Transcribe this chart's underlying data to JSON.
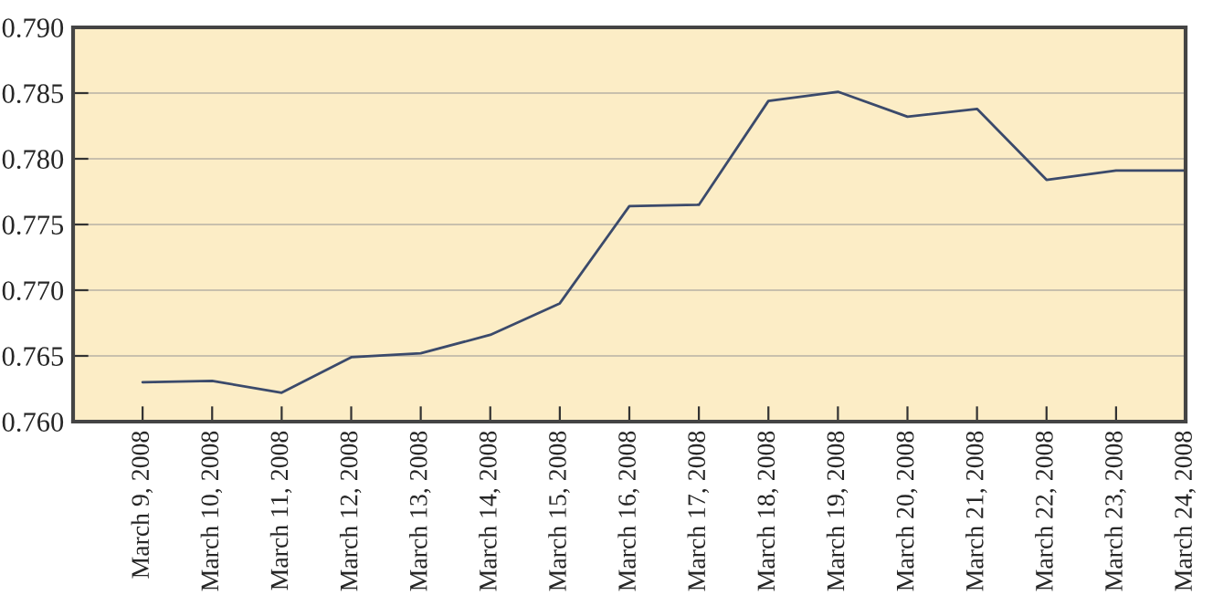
{
  "chart_data": {
    "type": "line",
    "categories": [
      "March 9, 2008",
      "March 10, 2008",
      "March 11, 2008",
      "March 12, 2008",
      "March 13, 2008",
      "March 14, 2008",
      "March 15, 2008",
      "March 16, 2008",
      "March 17, 2008",
      "March 18, 2008",
      "March 19, 2008",
      "March 20, 2008",
      "March 21, 2008",
      "March 22, 2008",
      "March 23, 2008",
      "March 24, 2008"
    ],
    "series": [
      {
        "color": "#3b4a6b",
        "values": [
          0.763,
          0.7631,
          0.7622,
          0.7649,
          0.7652,
          0.7666,
          0.769,
          0.7764,
          0.7765,
          0.7844,
          0.7851,
          0.7832,
          0.7838,
          0.7784,
          0.7791,
          0.7791
        ]
      }
    ],
    "ylim": [
      0.76,
      0.79
    ],
    "yticks": [
      {
        "value": 0.76,
        "label": "0.760"
      },
      {
        "value": 0.765,
        "label": "0.765"
      },
      {
        "value": 0.77,
        "label": "0.770"
      },
      {
        "value": 0.775,
        "label": "0.775"
      },
      {
        "value": 0.78,
        "label": "0.780"
      },
      {
        "value": 0.785,
        "label": "0.785"
      },
      {
        "value": 0.79,
        "label": "0.790"
      }
    ],
    "grid": "y",
    "legend": false,
    "marker": "none",
    "line_style": "solid"
  }
}
